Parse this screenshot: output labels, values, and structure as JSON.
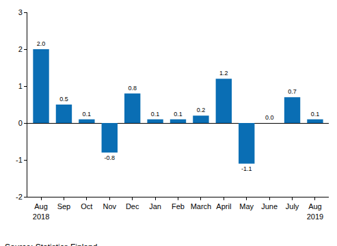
{
  "chart_data": {
    "type": "bar",
    "categories": [
      "Aug\n2018",
      "Sep",
      "Oct",
      "Nov",
      "Dec",
      "Jan",
      "Feb",
      "March",
      "April",
      "May",
      "June",
      "July",
      "Aug\n2019"
    ],
    "values": [
      2.0,
      0.5,
      0.1,
      -0.8,
      0.8,
      0.1,
      0.1,
      0.2,
      1.2,
      -1.1,
      0.0,
      0.7,
      0.1
    ],
    "value_labels": [
      "2.0",
      "0.5",
      "0.1",
      "-0.8",
      "0.8",
      "0.1",
      "0.1",
      "0.2",
      "1.2",
      "-1.1",
      "0.0",
      "0.7",
      "0.1"
    ],
    "data_labels": true,
    "color": "#0a6eb4",
    "ylim": [
      -2,
      3
    ],
    "yticks": [
      -2,
      -1,
      0,
      1,
      2,
      3
    ],
    "grid": false,
    "source": "Source: Statistics Finland"
  }
}
